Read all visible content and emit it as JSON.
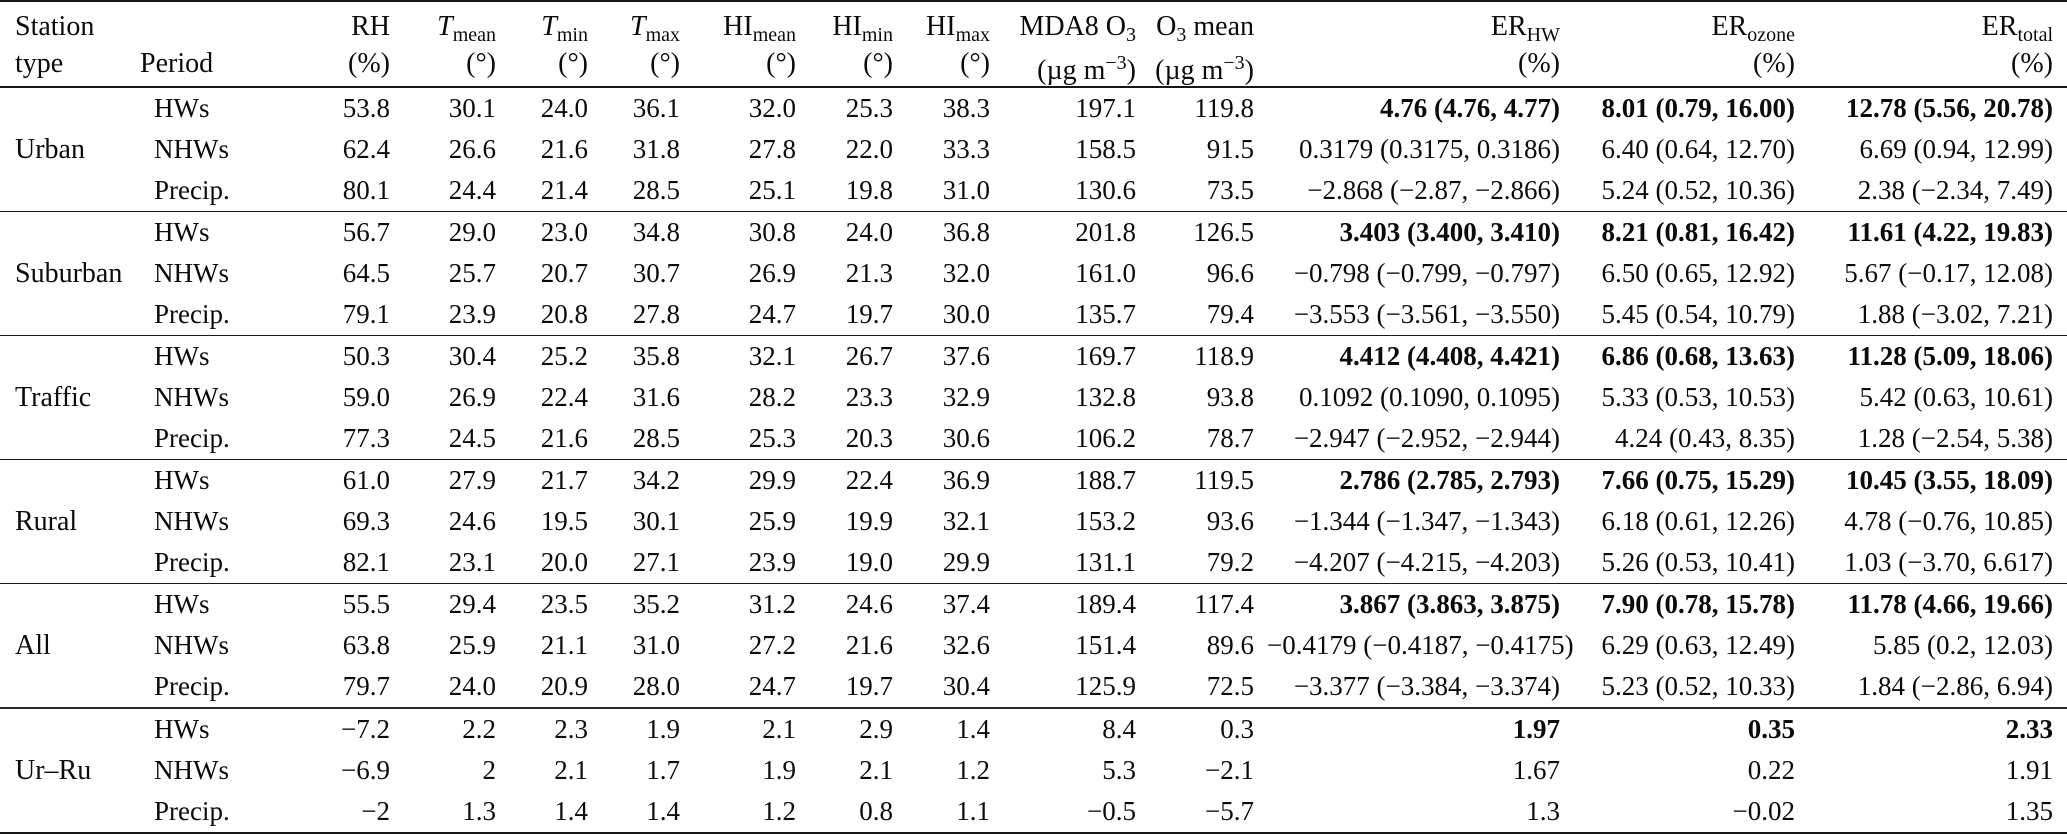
{
  "page": {
    "background": "#ffffff",
    "text_color": "#0b0b0b"
  },
  "table": {
    "header": {
      "station_type_line1": "Station",
      "station_type_line2": "type",
      "period": "Period",
      "columns": [
        {
          "key": "rh",
          "name": "RH",
          "sub": "",
          "tail": "",
          "italic": false,
          "unit": "(%)",
          "unit_sup": "",
          "unit_end": ""
        },
        {
          "key": "t-mean",
          "name": "T",
          "sub": "mean",
          "tail": "",
          "italic": true,
          "unit": "(°)",
          "unit_sup": "",
          "unit_end": ""
        },
        {
          "key": "t-min",
          "name": "T",
          "sub": "min",
          "tail": "",
          "italic": true,
          "unit": "(°)",
          "unit_sup": "",
          "unit_end": ""
        },
        {
          "key": "t-max",
          "name": "T",
          "sub": "max",
          "tail": "",
          "italic": true,
          "unit": "(°)",
          "unit_sup": "",
          "unit_end": ""
        },
        {
          "key": "hi-mean",
          "name": "HI",
          "sub": "mean",
          "tail": "",
          "italic": false,
          "unit": "(°)",
          "unit_sup": "",
          "unit_end": ""
        },
        {
          "key": "hi-min",
          "name": "HI",
          "sub": "min",
          "tail": "",
          "italic": false,
          "unit": "(°)",
          "unit_sup": "",
          "unit_end": ""
        },
        {
          "key": "hi-max",
          "name": "HI",
          "sub": "max",
          "tail": "",
          "italic": false,
          "unit": "(°)",
          "unit_sup": "",
          "unit_end": ""
        },
        {
          "key": "mda8-o3",
          "name": "MDA8 O",
          "sub": "3",
          "tail": "",
          "italic": false,
          "unit": "(µg m",
          "unit_sup": "−3",
          "unit_end": ")"
        },
        {
          "key": "o3-mean",
          "name": "O",
          "sub": "3",
          "tail": " mean",
          "italic": false,
          "unit": "(µg m",
          "unit_sup": "−3",
          "unit_end": ")"
        },
        {
          "key": "er-hw",
          "name": "ER",
          "sub": "HW",
          "tail": "",
          "italic": false,
          "unit": "(%)",
          "unit_sup": "",
          "unit_end": ""
        },
        {
          "key": "er-ozone",
          "name": "ER",
          "sub": "ozone",
          "tail": "",
          "italic": false,
          "unit": "(%)",
          "unit_sup": "",
          "unit_end": ""
        },
        {
          "key": "er-total",
          "name": "ER",
          "sub": "total",
          "tail": "",
          "italic": false,
          "unit": "(%)",
          "unit_sup": "",
          "unit_end": ""
        }
      ]
    },
    "groups": [
      {
        "station": "Urban",
        "rows": [
          {
            "period": "HWs",
            "er_bold": true,
            "values": [
              "53.8",
              "30.1",
              "24.0",
              "36.1",
              "32.0",
              "25.3",
              "38.3",
              "197.1",
              "119.8"
            ],
            "er": [
              "4.76 (4.76, 4.77)",
              "8.01 (0.79, 16.00)",
              "12.78 (5.56, 20.78)"
            ]
          },
          {
            "period": "NHWs",
            "er_bold": false,
            "values": [
              "62.4",
              "26.6",
              "21.6",
              "31.8",
              "27.8",
              "22.0",
              "33.3",
              "158.5",
              "91.5"
            ],
            "er": [
              "0.3179 (0.3175, 0.3186)",
              "6.40 (0.64, 12.70)",
              "6.69 (0.94, 12.99)"
            ]
          },
          {
            "period": "Precip.",
            "er_bold": false,
            "values": [
              "80.1",
              "24.4",
              "21.4",
              "28.5",
              "25.1",
              "19.8",
              "31.0",
              "130.6",
              "73.5"
            ],
            "er": [
              "−2.868 (−2.87, −2.866)",
              "5.24 (0.52, 10.36)",
              "2.38 (−2.34, 7.49)"
            ]
          }
        ]
      },
      {
        "station": "Suburban",
        "rows": [
          {
            "period": "HWs",
            "er_bold": true,
            "values": [
              "56.7",
              "29.0",
              "23.0",
              "34.8",
              "30.8",
              "24.0",
              "36.8",
              "201.8",
              "126.5"
            ],
            "er": [
              "3.403 (3.400, 3.410)",
              "8.21 (0.81, 16.42)",
              "11.61 (4.22, 19.83)"
            ]
          },
          {
            "period": "NHWs",
            "er_bold": false,
            "values": [
              "64.5",
              "25.7",
              "20.7",
              "30.7",
              "26.9",
              "21.3",
              "32.0",
              "161.0",
              "96.6"
            ],
            "er": [
              "−0.798 (−0.799, −0.797)",
              "6.50 (0.65, 12.92)",
              "5.67 (−0.17, 12.08)"
            ]
          },
          {
            "period": "Precip.",
            "er_bold": false,
            "values": [
              "79.1",
              "23.9",
              "20.8",
              "27.8",
              "24.7",
              "19.7",
              "30.0",
              "135.7",
              "79.4"
            ],
            "er": [
              "−3.553 (−3.561, −3.550)",
              "5.45 (0.54, 10.79)",
              "1.88 (−3.02, 7.21)"
            ]
          }
        ]
      },
      {
        "station": "Traffic",
        "rows": [
          {
            "period": "HWs",
            "er_bold": true,
            "values": [
              "50.3",
              "30.4",
              "25.2",
              "35.8",
              "32.1",
              "26.7",
              "37.6",
              "169.7",
              "118.9"
            ],
            "er": [
              "4.412 (4.408, 4.421)",
              "6.86 (0.68, 13.63)",
              "11.28 (5.09, 18.06)"
            ]
          },
          {
            "period": "NHWs",
            "er_bold": false,
            "values": [
              "59.0",
              "26.9",
              "22.4",
              "31.6",
              "28.2",
              "23.3",
              "32.9",
              "132.8",
              "93.8"
            ],
            "er": [
              "0.1092 (0.1090, 0.1095)",
              "5.33 (0.53, 10.53)",
              "5.42 (0.63, 10.61)"
            ]
          },
          {
            "period": "Precip.",
            "er_bold": false,
            "values": [
              "77.3",
              "24.5",
              "21.6",
              "28.5",
              "25.3",
              "20.3",
              "30.6",
              "106.2",
              "78.7"
            ],
            "er": [
              "−2.947 (−2.952, −2.944)",
              "4.24 (0.43, 8.35)",
              "1.28 (−2.54, 5.38)"
            ]
          }
        ]
      },
      {
        "station": "Rural",
        "rows": [
          {
            "period": "HWs",
            "er_bold": true,
            "values": [
              "61.0",
              "27.9",
              "21.7",
              "34.2",
              "29.9",
              "22.4",
              "36.9",
              "188.7",
              "119.5"
            ],
            "er": [
              "2.786 (2.785, 2.793)",
              "7.66 (0.75, 15.29)",
              "10.45 (3.55, 18.09)"
            ]
          },
          {
            "period": "NHWs",
            "er_bold": false,
            "values": [
              "69.3",
              "24.6",
              "19.5",
              "30.1",
              "25.9",
              "19.9",
              "32.1",
              "153.2",
              "93.6"
            ],
            "er": [
              "−1.344 (−1.347, −1.343)",
              "6.18 (0.61, 12.26)",
              "4.78 (−0.76, 10.85)"
            ]
          },
          {
            "period": "Precip.",
            "er_bold": false,
            "values": [
              "82.1",
              "23.1",
              "20.0",
              "27.1",
              "23.9",
              "19.0",
              "29.9",
              "131.1",
              "79.2"
            ],
            "er": [
              "−4.207 (−4.215, −4.203)",
              "5.26 (0.53, 10.41)",
              "1.03 (−3.70, 6.617)"
            ]
          }
        ]
      },
      {
        "station": "All",
        "rows": [
          {
            "period": "HWs",
            "er_bold": true,
            "values": [
              "55.5",
              "29.4",
              "23.5",
              "35.2",
              "31.2",
              "24.6",
              "37.4",
              "189.4",
              "117.4"
            ],
            "er": [
              "3.867 (3.863, 3.875)",
              "7.90 (0.78, 15.78)",
              "11.78 (4.66, 19.66)"
            ]
          },
          {
            "period": "NHWs",
            "er_bold": false,
            "values": [
              "63.8",
              "25.9",
              "21.1",
              "31.0",
              "27.2",
              "21.6",
              "32.6",
              "151.4",
              "89.6"
            ],
            "er": [
              "−0.4179 (−0.4187, −0.4175)",
              "6.29 (0.63, 12.49)",
              "5.85 (0.2, 12.03)"
            ]
          },
          {
            "period": "Precip.",
            "er_bold": false,
            "values": [
              "79.7",
              "24.0",
              "20.9",
              "28.0",
              "24.7",
              "19.7",
              "30.4",
              "125.9",
              "72.5"
            ],
            "er": [
              "−3.377 (−3.384, −3.374)",
              "5.23 (0.52, 10.33)",
              "1.84 (−2.86, 6.94)"
            ]
          }
        ]
      },
      {
        "station": "Ur–Ru",
        "rows": [
          {
            "period": "HWs",
            "er_bold": true,
            "values": [
              "−7.2",
              "2.2",
              "2.3",
              "1.9",
              "2.1",
              "2.9",
              "1.4",
              "8.4",
              "0.3"
            ],
            "er": [
              "1.97",
              "0.35",
              "2.33"
            ]
          },
          {
            "period": "NHWs",
            "er_bold": false,
            "values": [
              "−6.9",
              "2",
              "2.1",
              "1.7",
              "1.9",
              "2.1",
              "1.2",
              "5.3",
              "−2.1"
            ],
            "er": [
              "1.67",
              "0.22",
              "1.91"
            ]
          },
          {
            "period": "Precip.",
            "er_bold": false,
            "values": [
              "−2",
              "1.3",
              "1.4",
              "1.4",
              "1.2",
              "0.8",
              "1.1",
              "−0.5",
              "−5.7"
            ],
            "er": [
              "1.3",
              "−0.02",
              "1.35"
            ]
          }
        ]
      }
    ]
  }
}
